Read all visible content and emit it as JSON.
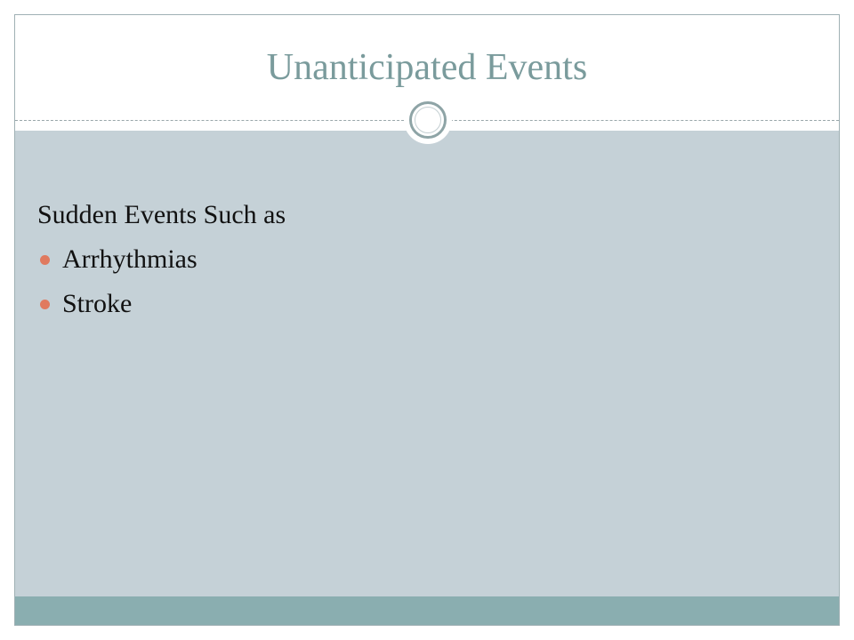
{
  "slide": {
    "title": "Unanticipated Events",
    "lead": "Sudden Events Such as",
    "bullets": [
      "Arrhythmias",
      "Stroke"
    ]
  },
  "colors": {
    "title": "#7a9b9c",
    "content_background": "#c5d1d7",
    "footer_bar": "#8aaeb0",
    "bullet": "#e07a5f"
  }
}
